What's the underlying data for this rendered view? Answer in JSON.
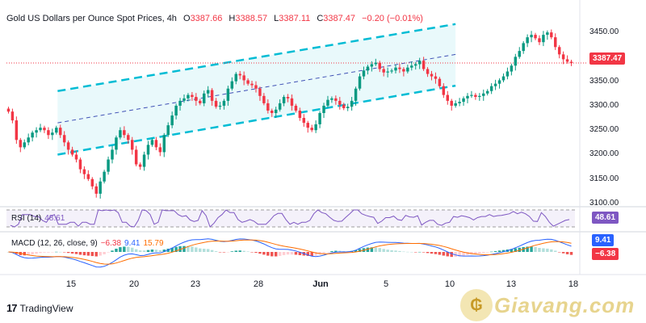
{
  "header": {
    "symbol": "Gold US Dollars per Ounce Spot Prices, 4h",
    "open_label": "O",
    "open": "3387.66",
    "high_label": "H",
    "high": "3388.57",
    "low_label": "L",
    "low": "3387.11",
    "close_label": "C",
    "close": "3387.47",
    "change": "−0.20 (−0.01%)"
  },
  "colors": {
    "up": "#089981",
    "down": "#f23645",
    "channel": "#00bcd4",
    "channel_fill": "#e0f7fa",
    "rsi": "#7e57c2",
    "macd": "#2962ff",
    "signal": "#ff6d00",
    "hist_pos": "#26a69a",
    "hist_pos_light": "#b2dfdb",
    "hist_neg": "#ef5350",
    "hist_neg_light": "#ffcdd2"
  },
  "price_axis": {
    "ticks": [
      "3450.00",
      "3400.00",
      "3350.00",
      "3300.00",
      "3250.00",
      "3200.00",
      "3150.00",
      "3100.00"
    ],
    "last_price": "3387.47"
  },
  "rsi": {
    "label": "RSI (14)",
    "value": "48.61"
  },
  "macd": {
    "label": "MACD (12, 26, close, 9)",
    "hist": "−6.38",
    "macd": "9.41",
    "signal": "15.79",
    "badge_macd": "9.41",
    "badge_hist": "−6.38"
  },
  "x_axis": {
    "labels": [
      "15",
      "20",
      "23",
      "28",
      "Jun",
      "5",
      "10",
      "13",
      "18"
    ]
  },
  "branding": {
    "tradingview": "TradingView",
    "watermark": "Giavang.com"
  },
  "chart_data": {
    "type": "candlestick",
    "timeframe": "4h",
    "ylim": [
      3100,
      3470
    ],
    "channel": {
      "upper": [
        [
          0.09,
          3330
        ],
        [
          0.79,
          3467
        ]
      ],
      "middle": [
        [
          0.09,
          3265
        ],
        [
          0.79,
          3405
        ]
      ],
      "lower": [
        [
          0.09,
          3200
        ],
        [
          0.79,
          3341
        ]
      ]
    },
    "series": [
      {
        "name": "price",
        "close_path": [
          3288,
          3270,
          3230,
          3215,
          3225,
          3235,
          3245,
          3250,
          3255,
          3250,
          3240,
          3245,
          3255,
          3240,
          3225,
          3210,
          3200,
          3190,
          3170,
          3160,
          3150,
          3135,
          3120,
          3145,
          3165,
          3190,
          3210,
          3235,
          3250,
          3240,
          3230,
          3210,
          3180,
          3175,
          3200,
          3220,
          3230,
          3215,
          3205,
          3240,
          3260,
          3280,
          3300,
          3310,
          3315,
          3322,
          3318,
          3310,
          3305,
          3325,
          3332,
          3310,
          3298,
          3300,
          3310,
          3335,
          3350,
          3365,
          3362,
          3352,
          3345,
          3342,
          3335,
          3320,
          3305,
          3290,
          3285,
          3292,
          3305,
          3318,
          3315,
          3300,
          3290,
          3275,
          3265,
          3255,
          3250,
          3262,
          3285,
          3300,
          3312,
          3315,
          3310,
          3302,
          3295,
          3298,
          3310,
          3335,
          3360,
          3372,
          3380,
          3385,
          3388,
          3375,
          3368,
          3370,
          3372,
          3378,
          3375,
          3370,
          3378,
          3382,
          3385,
          3392,
          3375,
          3365,
          3360,
          3355,
          3340,
          3322,
          3310,
          3300,
          3305,
          3308,
          3315,
          3320,
          3322,
          3318,
          3320,
          3325,
          3330,
          3340,
          3345,
          3352,
          3360,
          3370,
          3382,
          3400,
          3412,
          3428,
          3440,
          3445,
          3438,
          3430,
          3445,
          3450,
          3440,
          3420,
          3405,
          3395,
          3390,
          3387
        ]
      }
    ],
    "rsi": {
      "value": 48.61,
      "band_upper": 70,
      "band_lower": 30
    },
    "macd_values": {
      "macd": 9.41,
      "signal": 15.79,
      "hist": -6.38
    }
  }
}
